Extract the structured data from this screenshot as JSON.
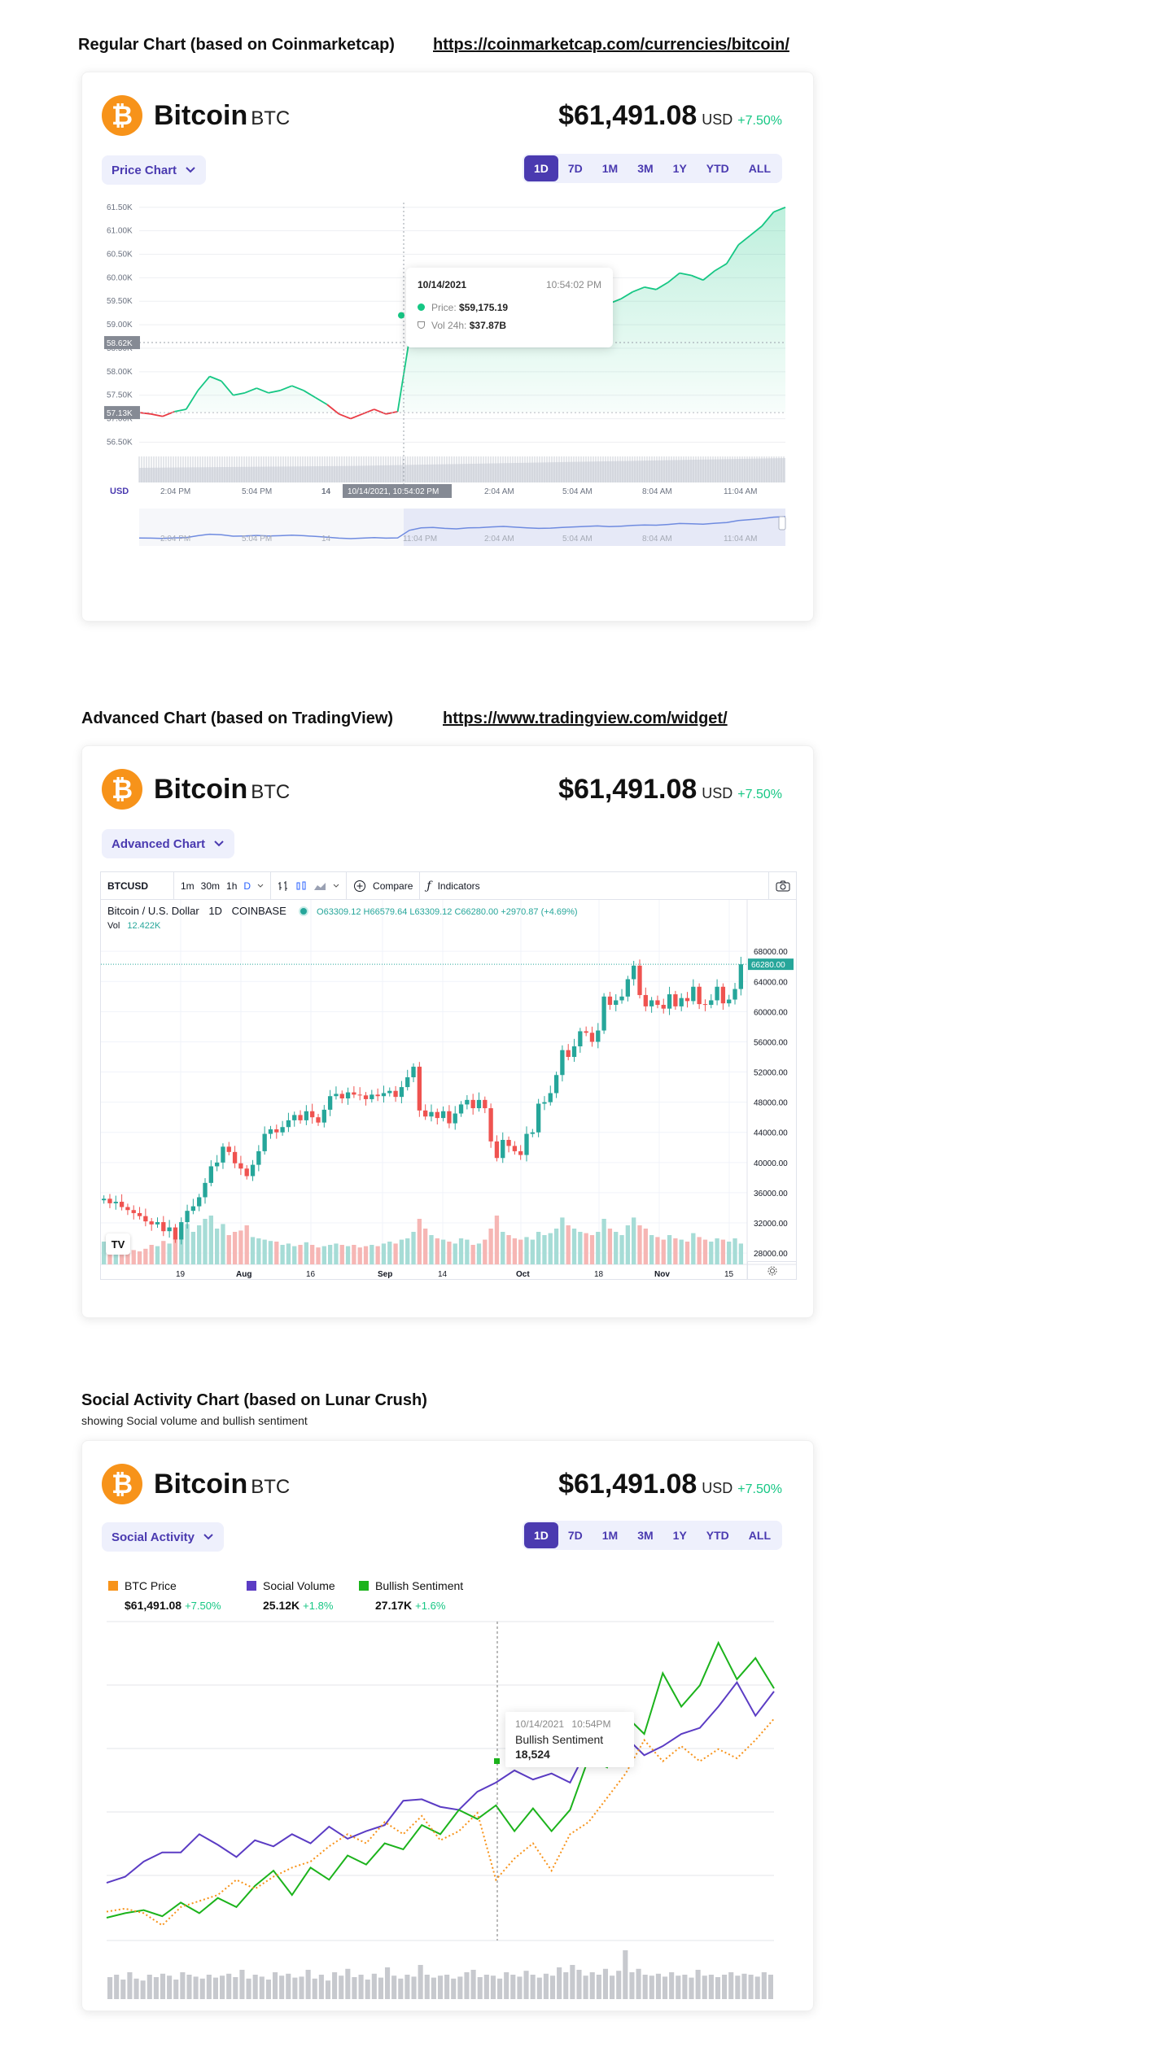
{
  "sections": {
    "regular": {
      "title": "Regular Chart (based on Coinmarketcap)",
      "link": "https://coinmarketcap.com/currencies/bitcoin/"
    },
    "advanced": {
      "title": "Advanced Chart (based on TradingView)",
      "link": "https://www.tradingview.com/widget/"
    },
    "social": {
      "title": "Social Activity Chart (based on Lunar Crush)",
      "subtitle": "showing Social volume and bullish sentiment"
    }
  },
  "coin": {
    "logo_glyph": "₿",
    "name": "Bitcoin",
    "symbol": "BTC",
    "price": "$61,491.08",
    "currency": "USD",
    "change": "+7.50%"
  },
  "colors": {
    "brand": "#f7931a",
    "accent": "#4a3ab0",
    "up": "#16c784",
    "down": "#ea3943",
    "tv_up": "#26a69a",
    "tv_down": "#ef5350",
    "social_volume": "#5b3cc4",
    "bullish": "#1cb31c",
    "btc_price": "#f7931a"
  },
  "ranges": [
    "1D",
    "7D",
    "1M",
    "3M",
    "1Y",
    "YTD",
    "ALL"
  ],
  "regular_chart": {
    "dropdown": "Price Chart",
    "currency_axis": "USD",
    "tooltip": {
      "date": "10/14/2021",
      "time": "10:54:02 PM",
      "price_label": "Price:",
      "price_value": "$59,175.19",
      "vol_label": "Vol 24h:",
      "vol_value": "$37.87B"
    },
    "crosshair_y_label": "58.62K",
    "crosshair_x_label": "10/14/2021, 10:54:02 PM",
    "open_label": "57.13K",
    "icons": {
      "dropdown": "chevron-down-icon",
      "navigator_handle": "drag-handle-icon"
    }
  },
  "advanced_chart": {
    "dropdown": "Advanced Chart",
    "toolbar": {
      "symbol": "BTCUSD",
      "intervals": [
        "1m",
        "30m",
        "1h",
        "D"
      ],
      "compare": "Compare",
      "indicators": "Indicators"
    },
    "legend": {
      "title": "Bitcoin / U.S. Dollar",
      "interval": "1D",
      "exchange": "COINBASE",
      "o": "O63309.12",
      "h": "H66579.64",
      "l": "L63309.12",
      "c": "C66280.00",
      "change": "+2970.87 (+4.69%)",
      "vol_label": "Vol",
      "vol_value": "12.422K"
    },
    "last_price_label": "66280.00",
    "logo": "TV",
    "icons": {
      "camera": "camera-icon",
      "settings": "gear-icon",
      "compare": "plus-circle-icon",
      "indicators": "function-icon",
      "bar_type": "candles-icon",
      "area": "area-chart-icon"
    }
  },
  "social_chart": {
    "dropdown": "Social Activity",
    "legend": [
      {
        "name": "BTC Price",
        "value": "$61,491.08",
        "change": "+7.50%",
        "color": "#f7931a"
      },
      {
        "name": "Social Volume",
        "value": "25.12K",
        "change": "+1.8%",
        "color": "#5b3cc4"
      },
      {
        "name": "Bullish Sentiment",
        "value": "27.17K",
        "change": "+1.6%",
        "color": "#1cb31c"
      }
    ],
    "tooltip": {
      "date": "10/14/2021",
      "time": "10:54PM",
      "label": "Bullish Sentiment",
      "value": "18,524"
    }
  },
  "chart_data": [
    {
      "type": "area",
      "title": "",
      "xlabel": "",
      "ylabel": "USD",
      "x_ticks": [
        "2:04 PM",
        "5:04 PM",
        "14",
        "11:04 PM",
        "2:04 AM",
        "5:04 AM",
        "8:04 AM",
        "11:04 AM"
      ],
      "y_ticks": [
        "56.50K",
        "57.00K",
        "57.50K",
        "58.00K",
        "58.50K",
        "59.00K",
        "59.50K",
        "60.00K",
        "60.50K",
        "61.00K",
        "61.50K"
      ],
      "ylim": [
        56.3,
        61.6
      ],
      "series": [
        {
          "values": [
            57.13,
            57.1,
            57.05,
            57.15,
            57.2,
            57.6,
            57.9,
            57.8,
            57.5,
            57.55,
            57.65,
            57.55,
            57.6,
            57.7,
            57.6,
            57.45,
            57.3,
            57.1,
            57.0,
            57.1,
            57.2,
            57.1,
            57.15,
            58.7,
            59.2,
            59.3,
            59.1,
            59.0,
            59.2,
            59.25,
            59.4,
            59.5,
            59.35,
            59.2,
            59.1,
            59.15,
            59.3,
            59.4,
            59.5,
            59.6,
            59.45,
            59.55,
            59.7,
            59.8,
            59.75,
            59.9,
            60.1,
            60.05,
            59.95,
            60.15,
            60.3,
            60.7,
            60.9,
            61.1,
            61.4,
            61.5
          ]
        }
      ],
      "volume": [
        0.3,
        0.31,
        0.32,
        0.33,
        0.34,
        0.36,
        0.38,
        0.4,
        0.42,
        0.44,
        0.46,
        0.48,
        0.5
      ]
    },
    {
      "type": "candlestick",
      "title": "",
      "x_ticks": [
        "19",
        "Aug",
        "16",
        "Sep",
        "14",
        "Oct",
        "18",
        "Nov",
        "15"
      ],
      "y_ticks": [
        "28000.00",
        "32000.00",
        "36000.00",
        "40000.00",
        "44000.00",
        "48000.00",
        "52000.00",
        "56000.00",
        "60000.00",
        "64000.00",
        "68000.00"
      ],
      "ylim": [
        26500,
        70500
      ],
      "close": [
        35200,
        34600,
        34800,
        34100,
        33700,
        33300,
        32900,
        32200,
        31800,
        32100,
        30900,
        31400,
        29800,
        32100,
        33600,
        34200,
        35400,
        37300,
        39500,
        40000,
        42100,
        41400,
        39900,
        39200,
        38200,
        39700,
        41500,
        43800,
        44400,
        44000,
        44700,
        45600,
        46300,
        45600,
        46800,
        46000,
        45300,
        47000,
        48800,
        49100,
        48500,
        49300,
        49000,
        48900,
        48400,
        49000,
        48800,
        49200,
        49500,
        48700,
        50000,
        51300,
        52700,
        46900,
        46100,
        46700,
        45900,
        46800,
        45200,
        46500,
        47700,
        48300,
        47200,
        48300,
        47200,
        42800,
        40600,
        43000,
        42200,
        41500,
        41000,
        43800,
        44000,
        47800,
        48000,
        49200,
        51600,
        54900,
        54000,
        55400,
        57400,
        57200,
        56000,
        57500,
        62000,
        60900,
        61500,
        62000,
        64300,
        66100,
        62200,
        60700,
        61500,
        60900,
        60400,
        62300,
        60700,
        61800,
        61400,
        63300,
        61000,
        60900,
        61500,
        63300,
        61100,
        61600,
        63000,
        66280
      ],
      "volume": [
        0.35,
        0.3,
        0.28,
        0.25,
        0.3,
        0.22,
        0.2,
        0.24,
        0.3,
        0.28,
        0.36,
        0.32,
        0.4,
        0.55,
        0.62,
        0.5,
        0.6,
        0.7,
        0.75,
        0.55,
        0.62,
        0.45,
        0.5,
        0.52,
        0.6,
        0.42,
        0.4,
        0.38,
        0.36,
        0.35,
        0.3,
        0.32,
        0.28,
        0.3,
        0.34,
        0.3,
        0.26,
        0.28,
        0.3,
        0.32,
        0.3,
        0.28,
        0.3,
        0.26,
        0.28,
        0.3,
        0.28,
        0.32,
        0.35,
        0.32,
        0.38,
        0.4,
        0.5,
        0.7,
        0.55,
        0.45,
        0.4,
        0.38,
        0.35,
        0.32,
        0.4,
        0.38,
        0.3,
        0.32,
        0.38,
        0.55,
        0.75,
        0.5,
        0.45,
        0.4,
        0.38,
        0.42,
        0.38,
        0.5,
        0.45,
        0.48,
        0.55,
        0.72,
        0.6,
        0.55,
        0.5,
        0.48,
        0.45,
        0.5,
        0.7,
        0.55,
        0.5,
        0.45,
        0.6,
        0.72,
        0.6,
        0.55,
        0.45,
        0.42,
        0.38,
        0.45,
        0.4,
        0.38,
        0.35,
        0.48,
        0.42,
        0.38,
        0.35,
        0.4,
        0.38,
        0.35,
        0.4,
        0.32
      ]
    },
    {
      "type": "line",
      "title": "",
      "series": [
        {
          "name": "Social Volume",
          "values": [
            38,
            42,
            52,
            58,
            58,
            70,
            63,
            55,
            66,
            62,
            70,
            64,
            75,
            67,
            72,
            76,
            92,
            93,
            88,
            86,
            98,
            104,
            112,
            106,
            110,
            104,
            128,
            120,
            134,
            122,
            128,
            136,
            140,
            154,
            170,
            148,
            164
          ]
        },
        {
          "name": "Bullish Sentiment",
          "values": [
            15,
            18,
            20,
            16,
            25,
            18,
            28,
            22,
            36,
            46,
            30,
            48,
            40,
            56,
            50,
            64,
            60,
            76,
            70,
            86,
            80,
            89,
            72,
            87,
            72,
            86,
            120,
            114,
            148,
            136,
            176,
            154,
            168,
            196,
            172,
            186,
            166
          ]
        },
        {
          "name": "BTC Price",
          "values": [
            19,
            21,
            18,
            10,
            22,
            26,
            30,
            40,
            34,
            42,
            48,
            52,
            62,
            70,
            64,
            78,
            70,
            82,
            66,
            72,
            84,
            40,
            54,
            64,
            46,
            70,
            78,
            94,
            110,
            132,
            118,
            128,
            118,
            126,
            120,
            132,
            146
          ]
        }
      ],
      "social_volume_bars": [
        0.45,
        0.5,
        0.4,
        0.55,
        0.42,
        0.38,
        0.5,
        0.45,
        0.52,
        0.48,
        0.4,
        0.55,
        0.5,
        0.46,
        0.42,
        0.5,
        0.44,
        0.48,
        0.52,
        0.45,
        0.6,
        0.42,
        0.5,
        0.46,
        0.4,
        0.55,
        0.48,
        0.52,
        0.44,
        0.46,
        0.6,
        0.42,
        0.5,
        0.38,
        0.55,
        0.48,
        0.62,
        0.45,
        0.5,
        0.4,
        0.52,
        0.44,
        0.65,
        0.48,
        0.42,
        0.5,
        0.46,
        0.7,
        0.5,
        0.44,
        0.48,
        0.5,
        0.42,
        0.46,
        0.55,
        0.6,
        0.45,
        0.5,
        0.48,
        0.42,
        0.55,
        0.5,
        0.46,
        0.58,
        0.5,
        0.44,
        0.52,
        0.48,
        0.65,
        0.55,
        0.7,
        0.6,
        0.48,
        0.55,
        0.5,
        0.62,
        0.48,
        0.58,
        1.0,
        0.55,
        0.62,
        0.5,
        0.48,
        0.52,
        0.46,
        0.55,
        0.48,
        0.5,
        0.44,
        0.6,
        0.48,
        0.5,
        0.45,
        0.5,
        0.55,
        0.48,
        0.52,
        0.5,
        0.46,
        0.55,
        0.5
      ]
    }
  ]
}
